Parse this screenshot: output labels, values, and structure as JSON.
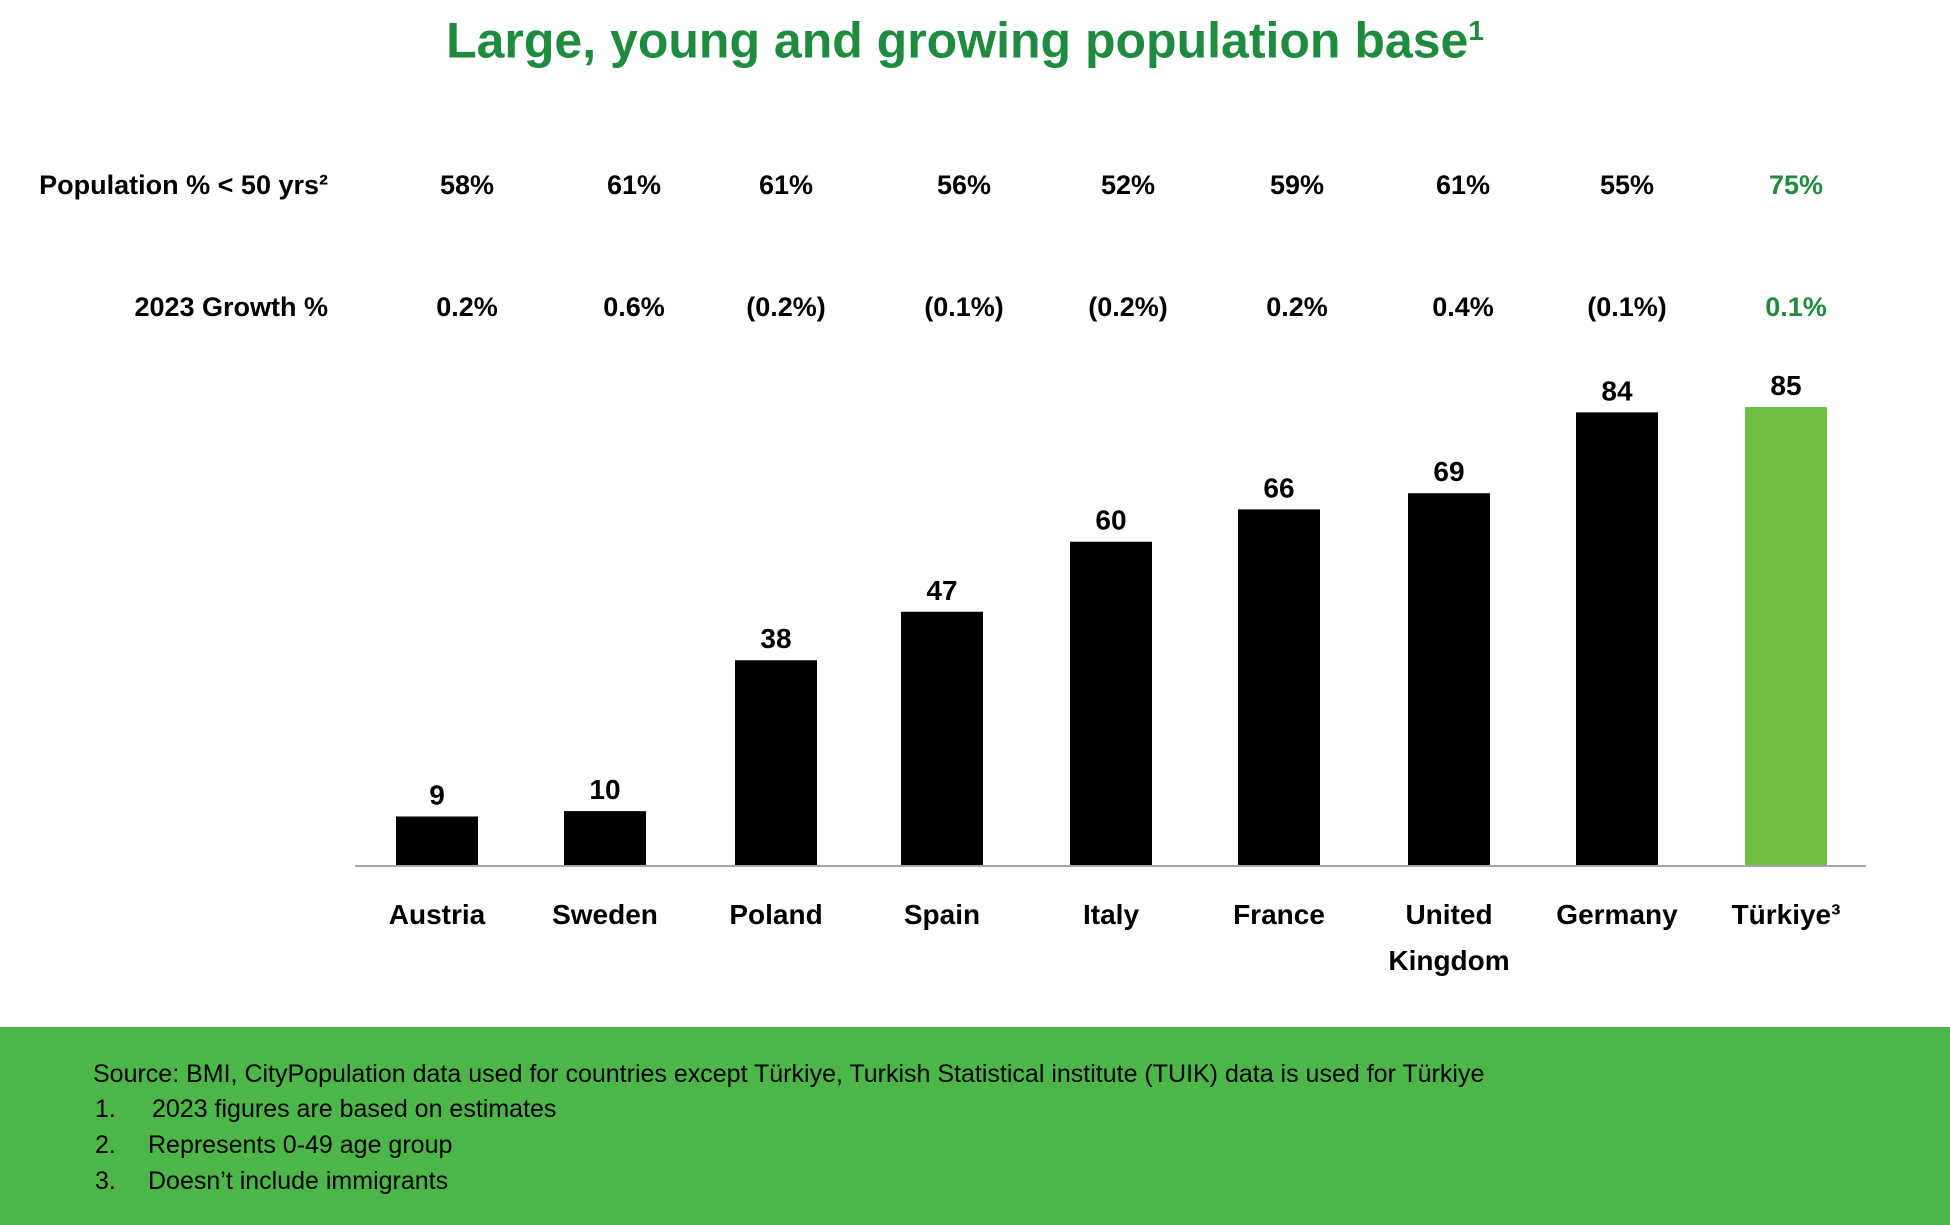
{
  "title": "Large, young and growing population base",
  "title_sup": "1",
  "rows": {
    "population_label": "Population % < 50 yrs²",
    "population_values": [
      "58%",
      "61%",
      "61%",
      "56%",
      "52%",
      "59%",
      "61%",
      "55%",
      "75%"
    ],
    "growth_label": "2023 Growth %",
    "growth_values": [
      "0.2%",
      "0.6%",
      "(0.2%)",
      "(0.1%)",
      "(0.2%)",
      "0.2%",
      "0.4%",
      "(0.1%)",
      "0.1%"
    ]
  },
  "chart_data": {
    "type": "bar",
    "categories": [
      "Austria",
      "Sweden",
      "Poland",
      "Spain",
      "Italy",
      "France",
      "United Kingdom",
      "Germany",
      "Türkiye³"
    ],
    "values": [
      9,
      10,
      38,
      47,
      60,
      66,
      69,
      84,
      85
    ],
    "highlight_index": 8,
    "colors": {
      "default": "#000000",
      "highlight": "#70bf44"
    },
    "ylim": [
      0,
      85
    ],
    "title": "",
    "xlabel": "",
    "ylabel": ""
  },
  "footer": {
    "source": "Source: BMI, CityPopulation data used for countries except Türkiye, Turkish Statistical institute (TUIK) data is used for Türkiye",
    "notes": [
      {
        "num": "1.",
        "text": "2023 figures are based on estimates"
      },
      {
        "num": "2.",
        "text": "Represents 0-49 age group"
      },
      {
        "num": "3.",
        "text": "Doesn’t include immigrants"
      }
    ]
  },
  "colors": {
    "accent": "#1f8b3f",
    "footer_bg": "#4cb648"
  }
}
